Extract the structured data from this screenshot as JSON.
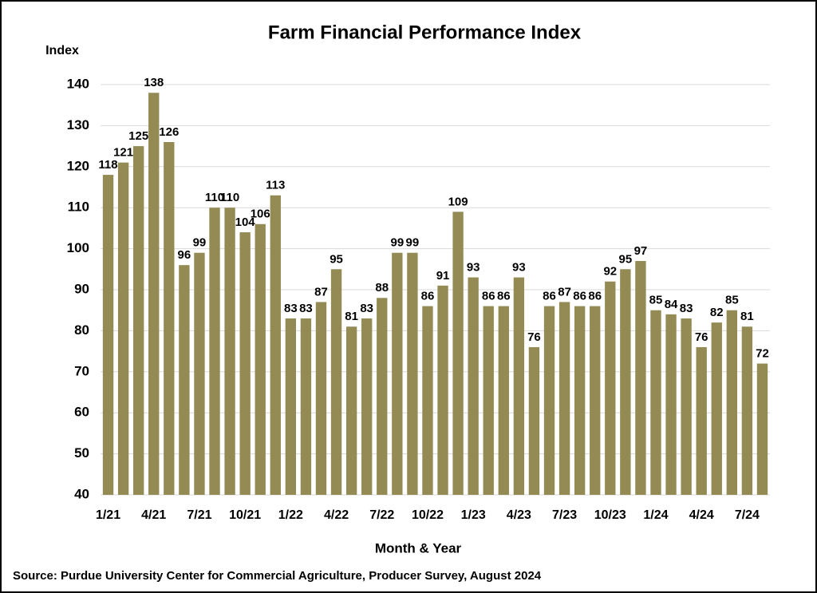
{
  "chart_data": {
    "type": "bar",
    "title": "Farm Financial Performance Index",
    "y_label": "Index",
    "x_label": "Month & Year",
    "source": "Source: Purdue University Center for Commercial Agriculture, Producer Survey, August 2024",
    "categories": [
      "1/21",
      null,
      null,
      "4/21",
      null,
      null,
      "7/21",
      null,
      null,
      "10/21",
      null,
      null,
      "1/22",
      null,
      null,
      "4/22",
      null,
      null,
      "7/22",
      null,
      null,
      "10/22",
      null,
      null,
      "1/23",
      null,
      null,
      "4/23",
      null,
      null,
      "7/23",
      null,
      null,
      "10/23",
      null,
      null,
      "1/24",
      null,
      null,
      "4/24",
      null,
      null,
      "7/24",
      null
    ],
    "values": [
      118,
      121,
      125,
      138,
      126,
      96,
      99,
      110,
      110,
      104,
      106,
      113,
      83,
      83,
      87,
      95,
      81,
      83,
      88,
      99,
      99,
      86,
      91,
      109,
      93,
      86,
      86,
      93,
      76,
      86,
      87,
      86,
      86,
      92,
      95,
      97,
      85,
      84,
      83,
      76,
      82,
      85,
      81,
      72
    ],
    "color": "#948a54",
    "ylim": [
      40,
      140
    ],
    "yticks": [
      40,
      50,
      60,
      70,
      80,
      90,
      100,
      110,
      120,
      130,
      140
    ],
    "grid": true
  }
}
